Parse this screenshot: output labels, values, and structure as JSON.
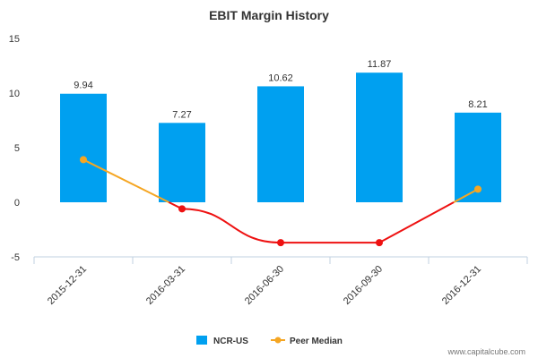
{
  "chart_data": {
    "type": "bar",
    "title": "EBIT Margin History",
    "categories": [
      "2015-12-31",
      "2016-03-31",
      "2016-06-30",
      "2016-09-30",
      "2016-12-31"
    ],
    "series": [
      {
        "name": "NCR-US",
        "kind": "bar",
        "color": "#00a0f0",
        "values": [
          9.94,
          7.27,
          10.62,
          11.87,
          8.21
        ],
        "data_labels": [
          "9.94",
          "7.27",
          "10.62",
          "11.87",
          "8.21"
        ]
      },
      {
        "name": "Peer Median",
        "kind": "line",
        "color": "#f5a623",
        "values": [
          3.9,
          -0.6,
          -3.7,
          -3.7,
          1.2
        ],
        "point_colors": [
          "#f5a623",
          "#ee1111",
          "#ee1111",
          "#ee1111",
          "#f5a623"
        ]
      }
    ],
    "ylim": [
      -5,
      15
    ],
    "yticks": [
      "-5",
      "0",
      "5",
      "10",
      "15"
    ],
    "xlabel": "",
    "ylabel": "",
    "legend": "bottom-center",
    "grid": false
  },
  "footer": {
    "source": "www.capitalcube.com"
  }
}
